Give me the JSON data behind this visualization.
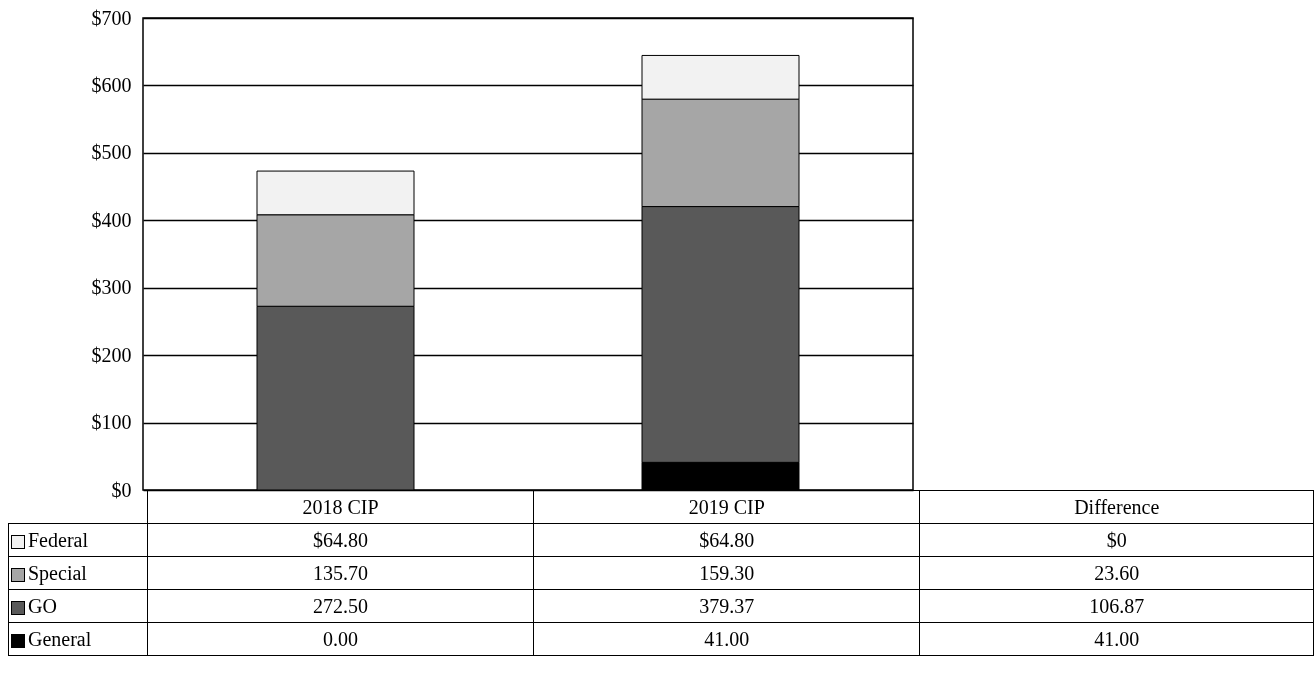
{
  "chart_data": {
    "type": "bar",
    "stacked": true,
    "categories": [
      "2018 CIP",
      "2019 CIP"
    ],
    "series": [
      {
        "name": "General",
        "color": "#000000",
        "values": [
          0,
          41
        ],
        "value_labels": [
          "0.00",
          "41.00"
        ]
      },
      {
        "name": "GO",
        "color": "#595959",
        "values": [
          272.5,
          379.37
        ],
        "value_labels": [
          "272.50",
          "379.37"
        ]
      },
      {
        "name": "Special",
        "color": "#a6a6a6",
        "values": [
          135.7,
          159.3
        ],
        "value_labels": [
          "135.70",
          "159.30"
        ]
      },
      {
        "name": "Federal",
        "color": "#f2f2f2",
        "values": [
          64.8,
          64.8
        ],
        "value_labels": [
          "$64.80",
          "$64.80"
        ]
      }
    ],
    "ylim": [
      0,
      700
    ],
    "yticks": [
      {
        "value": 0,
        "label": "$0"
      },
      {
        "value": 100,
        "label": "$100"
      },
      {
        "value": 200,
        "label": "$200"
      },
      {
        "value": 300,
        "label": "$300"
      },
      {
        "value": 400,
        "label": "$400"
      },
      {
        "value": 500,
        "label": "$500"
      },
      {
        "value": 600,
        "label": "$600"
      },
      {
        "value": 700,
        "label": "$700"
      }
    ],
    "grid": "y",
    "legend": "bottom",
    "annotations": [
      "Difference",
      "$0",
      "23.60",
      "106.87",
      "41.00"
    ]
  }
}
